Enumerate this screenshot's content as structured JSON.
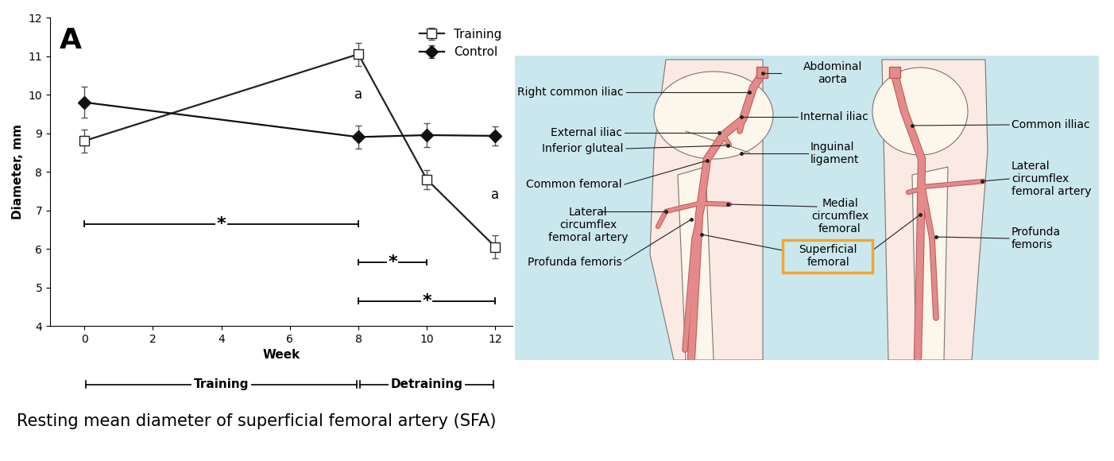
{
  "chart_data": {
    "type": "line",
    "panel_label": "A",
    "x_label": "Week",
    "y_label": "Diameter, mm",
    "xlim": [
      -1,
      12.5
    ],
    "xticks": [
      0,
      2,
      4,
      6,
      8,
      10,
      12
    ],
    "ylim": [
      4,
      12
    ],
    "yticks": [
      4,
      5,
      6,
      7,
      8,
      9,
      10,
      11,
      12
    ],
    "legend": "upper right",
    "series": [
      {
        "name": "Training",
        "color": "#222222",
        "marker": "square_open",
        "line_style": "solid",
        "x": [
          0,
          8,
          10,
          12
        ],
        "values": [
          8.8,
          11.05,
          7.8,
          6.05
        ],
        "errors": [
          0.3,
          0.3,
          0.25,
          0.3
        ]
      },
      {
        "name": "Control",
        "color": "#111111",
        "marker": "diamond",
        "line_style": "solid",
        "x": [
          0,
          8,
          10,
          12
        ],
        "values": [
          9.8,
          8.9,
          8.95,
          8.93
        ],
        "errors": [
          0.4,
          0.3,
          0.3,
          0.25
        ]
      }
    ],
    "annotations": [
      {
        "text": "a",
        "x": 8,
        "y": 10.0
      },
      {
        "text": "a",
        "x": 12,
        "y": 7.4
      }
    ],
    "brackets": [
      {
        "label": "*",
        "from": 0,
        "to": 8,
        "y": 6.65
      },
      {
        "label": "*",
        "from": 8,
        "to": 10,
        "y": 5.65
      },
      {
        "label": "*",
        "from": 8,
        "to": 12,
        "y": 4.65
      }
    ],
    "phases": [
      {
        "label": "Training",
        "from": 0,
        "to": 8
      },
      {
        "label": "Detraining",
        "from": 8,
        "to": 12
      }
    ],
    "caption": "Resting mean diameter of superficial femoral artery (SFA)"
  },
  "diagram": {
    "labels": [
      {
        "text": "Abdominal\naorta"
      },
      {
        "text": "Right common iliac"
      },
      {
        "text": "Internal iliac"
      },
      {
        "text": "External iliac"
      },
      {
        "text": "Inferior gluteal"
      },
      {
        "text": "Inguinal\nligament"
      },
      {
        "text": "Common femoral"
      },
      {
        "text": "Lateral\ncircumflex\nfemoral artery"
      },
      {
        "text": "Medial\ncircumflex\nfemoral"
      },
      {
        "text": "Superficial\nfemoral",
        "highlighted": true
      },
      {
        "text": "Profunda femoris"
      },
      {
        "text": "Common illiac"
      },
      {
        "text": "Lateral\ncircumflex\nfemoral artery"
      },
      {
        "text": "Profunda\nfemoris"
      }
    ]
  }
}
